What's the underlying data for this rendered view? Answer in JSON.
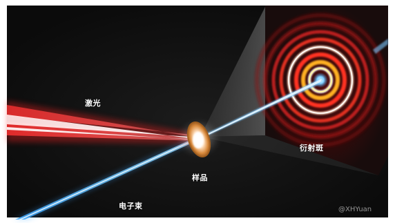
{
  "labels": {
    "laser": "激光",
    "sample": "样品",
    "electron_beam": "电子束",
    "diffraction_pattern": "衍射斑",
    "watermark": "@XHYuan"
  },
  "colors": {
    "background": "#111111",
    "frame": "#ffffff",
    "laser": "#ff3b3b",
    "electron_beam": "#5ab8ff",
    "sample": "#d9863c",
    "screen": "#1a1212",
    "rings": "#ff2a1a"
  }
}
